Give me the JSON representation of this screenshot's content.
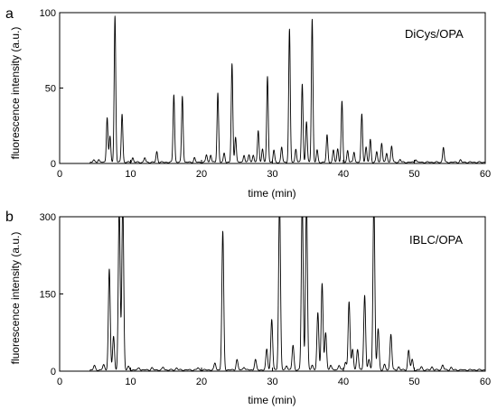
{
  "chart_data": [
    {
      "type": "line",
      "panel_label": "a",
      "title": "DiCys/OPA",
      "xlabel": "time (min)",
      "ylabel": "fluorescence intensity (a.u.)",
      "xlim": [
        0,
        60
      ],
      "ylim": [
        0,
        100
      ],
      "xticks": [
        0,
        10,
        20,
        30,
        40,
        50,
        60
      ],
      "yticks": [
        0,
        50,
        100
      ],
      "baseline_start": 4.3,
      "peaks": [
        {
          "x": 4.8,
          "y": 1.5
        },
        {
          "x": 5.5,
          "y": 2
        },
        {
          "x": 6.7,
          "y": 30
        },
        {
          "x": 7.1,
          "y": 17
        },
        {
          "x": 7.8,
          "y": 97
        },
        {
          "x": 8.8,
          "y": 32
        },
        {
          "x": 10.3,
          "y": 3
        },
        {
          "x": 12.0,
          "y": 3
        },
        {
          "x": 13.7,
          "y": 7
        },
        {
          "x": 16.1,
          "y": 45
        },
        {
          "x": 17.3,
          "y": 44
        },
        {
          "x": 19.0,
          "y": 3
        },
        {
          "x": 20.7,
          "y": 5
        },
        {
          "x": 21.3,
          "y": 5
        },
        {
          "x": 22.3,
          "y": 46
        },
        {
          "x": 23.2,
          "y": 6
        },
        {
          "x": 24.3,
          "y": 65
        },
        {
          "x": 24.8,
          "y": 17
        },
        {
          "x": 26.0,
          "y": 5
        },
        {
          "x": 26.7,
          "y": 5
        },
        {
          "x": 27.3,
          "y": 5
        },
        {
          "x": 28.0,
          "y": 21
        },
        {
          "x": 28.6,
          "y": 9
        },
        {
          "x": 29.3,
          "y": 57
        },
        {
          "x": 30.2,
          "y": 8
        },
        {
          "x": 31.3,
          "y": 10
        },
        {
          "x": 32.4,
          "y": 88
        },
        {
          "x": 33.3,
          "y": 9
        },
        {
          "x": 34.2,
          "y": 52
        },
        {
          "x": 34.8,
          "y": 27
        },
        {
          "x": 35.6,
          "y": 95
        },
        {
          "x": 36.3,
          "y": 8
        },
        {
          "x": 37.7,
          "y": 18
        },
        {
          "x": 38.6,
          "y": 8
        },
        {
          "x": 39.2,
          "y": 9
        },
        {
          "x": 39.8,
          "y": 40
        },
        {
          "x": 40.6,
          "y": 8
        },
        {
          "x": 41.5,
          "y": 7
        },
        {
          "x": 42.6,
          "y": 32
        },
        {
          "x": 43.2,
          "y": 10
        },
        {
          "x": 43.8,
          "y": 15
        },
        {
          "x": 44.7,
          "y": 7
        },
        {
          "x": 45.4,
          "y": 13
        },
        {
          "x": 46.1,
          "y": 6
        },
        {
          "x": 46.8,
          "y": 11
        },
        {
          "x": 48.0,
          "y": 2
        },
        {
          "x": 50.2,
          "y": 2
        },
        {
          "x": 54.1,
          "y": 10
        },
        {
          "x": 56.5,
          "y": 1.5
        }
      ]
    },
    {
      "type": "line",
      "panel_label": "b",
      "title": "IBLC/OPA",
      "xlabel": "time (min)",
      "ylabel": "fluorescence intensity (a.u.)",
      "xlim": [
        0,
        60
      ],
      "ylim": [
        0,
        300
      ],
      "xticks": [
        0,
        10,
        20,
        30,
        40,
        50,
        60
      ],
      "yticks": [
        0,
        150,
        300
      ],
      "baseline_start": 4.3,
      "peaks": [
        {
          "x": 4.9,
          "y": 8
        },
        {
          "x": 6.2,
          "y": 10
        },
        {
          "x": 7.0,
          "y": 195
        },
        {
          "x": 7.6,
          "y": 65
        },
        {
          "x": 8.4,
          "y": 320
        },
        {
          "x": 8.9,
          "y": 330
        },
        {
          "x": 9.7,
          "y": 6
        },
        {
          "x": 11.2,
          "y": 4
        },
        {
          "x": 13.0,
          "y": 4
        },
        {
          "x": 14.6,
          "y": 5
        },
        {
          "x": 16.5,
          "y": 4
        },
        {
          "x": 19.5,
          "y": 4
        },
        {
          "x": 21.9,
          "y": 13
        },
        {
          "x": 23.0,
          "y": 268
        },
        {
          "x": 25.0,
          "y": 20
        },
        {
          "x": 26.0,
          "y": 6
        },
        {
          "x": 27.6,
          "y": 20
        },
        {
          "x": 29.2,
          "y": 40
        },
        {
          "x": 29.9,
          "y": 98
        },
        {
          "x": 31.0,
          "y": 330
        },
        {
          "x": 32.0,
          "y": 9
        },
        {
          "x": 32.9,
          "y": 48
        },
        {
          "x": 34.2,
          "y": 330
        },
        {
          "x": 34.8,
          "y": 330
        },
        {
          "x": 35.6,
          "y": 10
        },
        {
          "x": 36.4,
          "y": 110
        },
        {
          "x": 37.0,
          "y": 168
        },
        {
          "x": 37.5,
          "y": 72
        },
        {
          "x": 38.2,
          "y": 10
        },
        {
          "x": 39.4,
          "y": 10
        },
        {
          "x": 40.3,
          "y": 15
        },
        {
          "x": 40.8,
          "y": 133
        },
        {
          "x": 41.3,
          "y": 40
        },
        {
          "x": 42.0,
          "y": 40
        },
        {
          "x": 43.0,
          "y": 145
        },
        {
          "x": 43.6,
          "y": 20
        },
        {
          "x": 44.3,
          "y": 330
        },
        {
          "x": 44.9,
          "y": 80
        },
        {
          "x": 45.8,
          "y": 10
        },
        {
          "x": 46.7,
          "y": 70
        },
        {
          "x": 47.8,
          "y": 6
        },
        {
          "x": 49.2,
          "y": 38
        },
        {
          "x": 49.7,
          "y": 20
        },
        {
          "x": 51.0,
          "y": 6
        },
        {
          "x": 52.5,
          "y": 6
        },
        {
          "x": 54.0,
          "y": 10
        },
        {
          "x": 55.2,
          "y": 5
        }
      ]
    }
  ]
}
